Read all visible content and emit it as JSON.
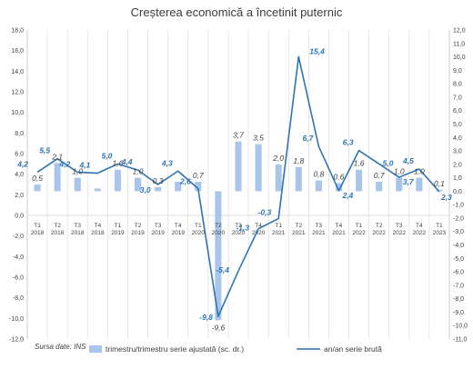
{
  "chart_data": {
    "type": "bar",
    "title": "Creșterea economică a încetinit puternic",
    "source_note": "Sursa date: INS",
    "categories": [
      [
        "T1",
        "2018"
      ],
      [
        "T2",
        "2018"
      ],
      [
        "T3",
        "2018"
      ],
      [
        "T4",
        "2018"
      ],
      [
        "T1",
        "2019"
      ],
      [
        "T2",
        "2019"
      ],
      [
        "T3",
        "2019"
      ],
      [
        "T4",
        "2019"
      ],
      [
        "T1",
        "2020"
      ],
      [
        "T2",
        "2020"
      ],
      [
        "T3",
        "2020"
      ],
      [
        "T4",
        "2020"
      ],
      [
        "T1",
        "2021"
      ],
      [
        "T2",
        "2021"
      ],
      [
        "T3",
        "2021"
      ],
      [
        "T4",
        "2021"
      ],
      [
        "T1",
        "2022"
      ],
      [
        "T2",
        "2022"
      ],
      [
        "T3",
        "2022"
      ],
      [
        "T4",
        "2022"
      ],
      [
        "T1",
        "2023"
      ]
    ],
    "left_axis": {
      "min": -12.0,
      "max": 18.0,
      "step": 2.0
    },
    "right_axis": {
      "min": -11.0,
      "max": 12.0,
      "step": 1.0
    },
    "series": [
      {
        "name": "trimestru/trimestru serie ajustată (sc. dr.)",
        "kind": "bar",
        "axis": "right",
        "color": "#a9c6ea",
        "values": [
          0.5,
          2.1,
          1.0,
          0.2,
          1.6,
          1.0,
          0.3,
          0.7,
          0.7,
          -9.6,
          3.7,
          3.5,
          2.0,
          1.8,
          0.8,
          0.6,
          1.6,
          0.7,
          1.0,
          1.0,
          0.1
        ],
        "labels": [
          "0,5",
          "2,1",
          "1,0",
          "",
          "1,6",
          "1,0",
          "0,3",
          "",
          "0,7",
          "-9,6",
          "3,7",
          "3,5",
          "2,0",
          "1,8",
          "0,8",
          "0,6",
          "1,6",
          "0,7",
          "1,0",
          "1,0",
          "0,1"
        ]
      },
      {
        "name": "an/an serie brută",
        "kind": "line",
        "axis": "left",
        "color": "#2e74b5",
        "values": [
          4.2,
          5.5,
          4.2,
          4.1,
          5.0,
          4.4,
          3.0,
          4.3,
          2.6,
          -9.8,
          -5.4,
          -1.3,
          -0.3,
          15.4,
          6.7,
          2.4,
          6.3,
          5.0,
          3.7,
          4.5,
          2.3
        ],
        "labels": [
          "4,2",
          "5,5",
          "4,2",
          "4,1",
          "5,0",
          "4,4",
          "3,0",
          "4,3",
          "2,6",
          "-9,8",
          "-5,4",
          "-1,3",
          "-0,3",
          "15,4",
          "6,7",
          "2,4",
          "6,3",
          "5,0",
          "3,7",
          "4,5",
          "2,3"
        ]
      }
    ],
    "grid": "vertical",
    "legend": "bottom"
  }
}
